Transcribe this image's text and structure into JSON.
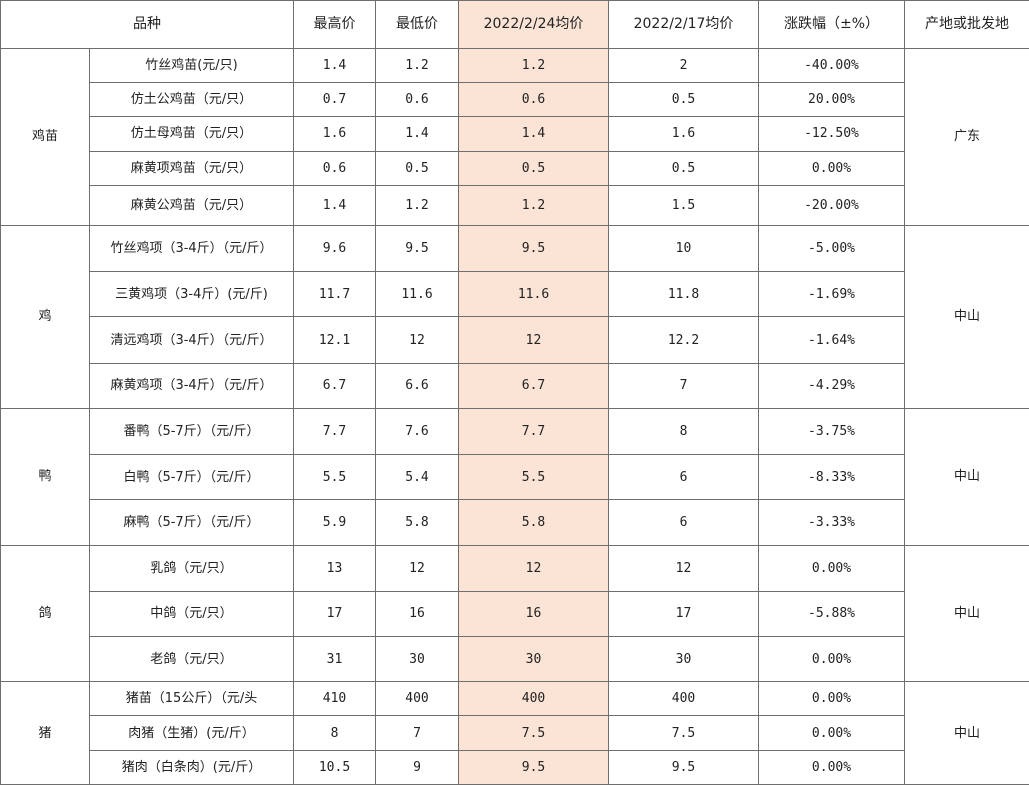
{
  "headers": {
    "variety": "品种",
    "high": "最高价",
    "low": "最低价",
    "avg_current": "2022/2/24均价",
    "avg_prev": "2022/2/17均价",
    "change": "涨跌幅（±%）",
    "origin": "产地或批发地"
  },
  "groups": [
    {
      "category": "鸡苗",
      "origin": "广东",
      "rows": [
        {
          "name": "竹丝鸡苗(元/只)",
          "high": "1.4",
          "low": "1.2",
          "avg": "1.2",
          "prev": "2",
          "change": "-40.00%"
        },
        {
          "name": "仿土公鸡苗（元/只）",
          "high": "0.7",
          "low": "0.6",
          "avg": "0.6",
          "prev": "0.5",
          "change": "20.00%"
        },
        {
          "name": "仿土母鸡苗（元/只）",
          "high": "1.6",
          "low": "1.4",
          "avg": "1.4",
          "prev": "1.6",
          "change": "-12.50%"
        },
        {
          "name": "麻黄项鸡苗（元/只）",
          "high": "0.6",
          "low": "0.5",
          "avg": "0.5",
          "prev": "0.5",
          "change": "0.00%"
        },
        {
          "name": "麻黄公鸡苗（元/只）",
          "high": "1.4",
          "low": "1.2",
          "avg": "1.2",
          "prev": "1.5",
          "change": "-20.00%"
        }
      ]
    },
    {
      "category": "鸡",
      "origin": "中山",
      "rows": [
        {
          "name": "竹丝鸡项（3-4斤）（元/斤）",
          "high": "9.6",
          "low": "9.5",
          "avg": "9.5",
          "prev": "10",
          "change": "-5.00%"
        },
        {
          "name": "三黄鸡项（3-4斤）(元/斤)",
          "high": "11.7",
          "low": "11.6",
          "avg": "11.6",
          "prev": "11.8",
          "change": "-1.69%"
        },
        {
          "name": "清远鸡项（3-4斤）（元/斤）",
          "high": "12.1",
          "low": "12",
          "avg": "12",
          "prev": "12.2",
          "change": "-1.64%"
        },
        {
          "name": "麻黄鸡项（3-4斤）（元/斤）",
          "high": "6.7",
          "low": "6.6",
          "avg": "6.7",
          "prev": "7",
          "change": "-4.29%"
        }
      ]
    },
    {
      "category": "鸭",
      "origin": "中山",
      "rows": [
        {
          "name": "番鸭（5-7斤）（元/斤）",
          "high": "7.7",
          "low": "7.6",
          "avg": "7.7",
          "prev": "8",
          "change": "-3.75%"
        },
        {
          "name": "白鸭（5-7斤）（元/斤）",
          "high": "5.5",
          "low": "5.4",
          "avg": "5.5",
          "prev": "6",
          "change": "-8.33%"
        },
        {
          "name": "麻鸭（5-7斤）（元/斤）",
          "high": "5.9",
          "low": "5.8",
          "avg": "5.8",
          "prev": "6",
          "change": "-3.33%"
        }
      ]
    },
    {
      "category": "鸽",
      "origin": "中山",
      "rows": [
        {
          "name": "乳鸽（元/只）",
          "high": "13",
          "low": "12",
          "avg": "12",
          "prev": "12",
          "change": "0.00%"
        },
        {
          "name": "中鸽（元/只）",
          "high": "17",
          "low": "16",
          "avg": "16",
          "prev": "17",
          "change": "-5.88%"
        },
        {
          "name": "老鸽（元/只）",
          "high": "31",
          "low": "30",
          "avg": "30",
          "prev": "30",
          "change": "0.00%"
        }
      ]
    },
    {
      "category": "猪",
      "origin": "中山",
      "rows": [
        {
          "name": "猪苗（15公斤）（元/头",
          "high": "410",
          "low": "400",
          "avg": "400",
          "prev": "400",
          "change": "0.00%"
        },
        {
          "name": "肉猪（生猪）(元/斤）",
          "high": "8",
          "low": "7",
          "avg": "7.5",
          "prev": "7.5",
          "change": "0.00%"
        },
        {
          "name": "猪肉（白条肉）(元/斤）",
          "high": "10.5",
          "low": "9",
          "avg": "9.5",
          "prev": "9.5",
          "change": "0.00%"
        }
      ]
    }
  ]
}
